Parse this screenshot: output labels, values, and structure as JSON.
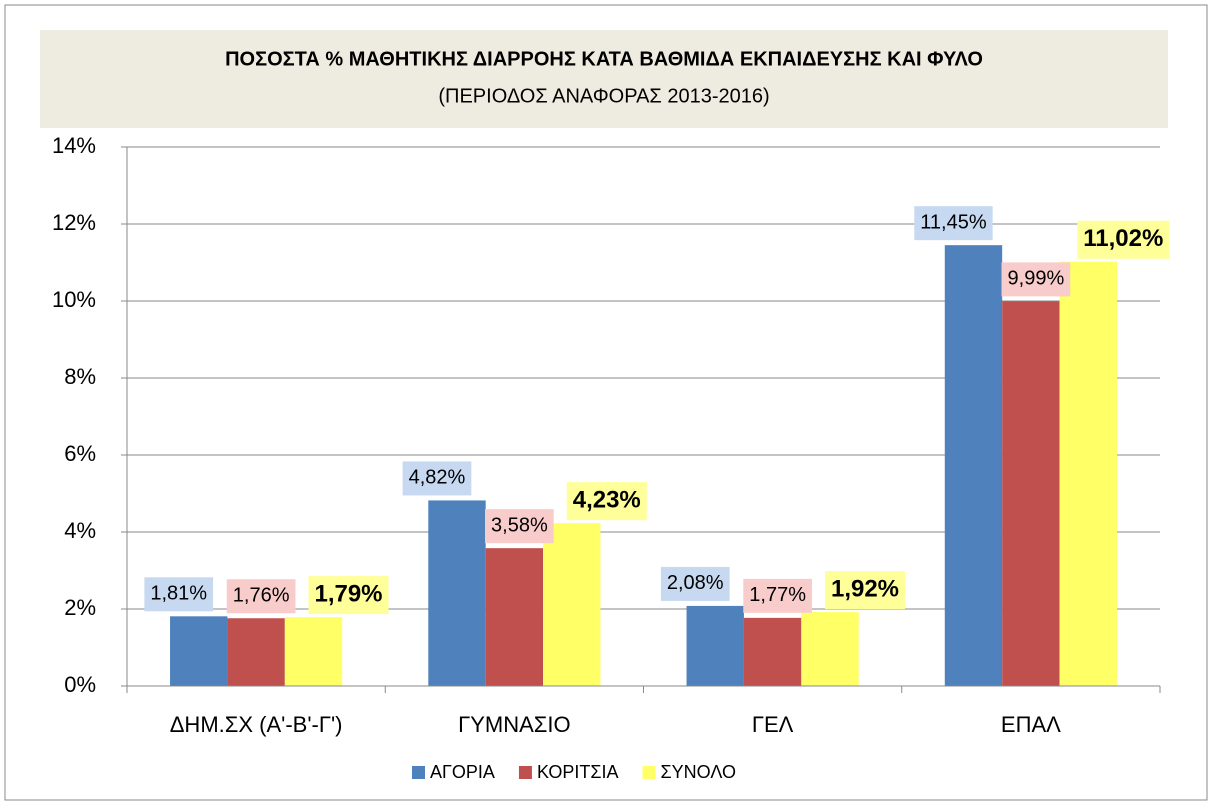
{
  "chart_data": {
    "type": "bar",
    "title": "ΠΟΣΟΣΤΑ % ΜΑΘΗΤΙΚΗΣ  ΔΙΑΡΡΟΗΣ ΚΑΤΑ  ΒΑΘΜΙΔΑ  ΕΚΠΑΙΔΕΥΣΗΣ  ΚΑΙ  ΦΥΛΟ",
    "subtitle": "(ΠΕΡΙΟΔΟΣ ΑΝΑΦΟΡΑΣ 2013-2016)",
    "categories": [
      "ΔΗΜ.ΣΧ (Α'-Β'-Γ')",
      "ΓΥΜΝΑΣΙΟ",
      "ΓΕΛ",
      "ΕΠΑΛ"
    ],
    "series": [
      {
        "name": "ΑΓΟΡΙΑ",
        "color": "#4f81bd",
        "label_background": "#c6d9f1",
        "values": [
          1.81,
          4.82,
          2.08,
          11.45
        ],
        "value_labels": [
          "1,81%",
          "4,82%",
          "2,08%",
          "11,45%"
        ]
      },
      {
        "name": "ΚΟΡΙΤΣΙΑ",
        "color": "#c0504d",
        "label_background": "#f9cccc",
        "values": [
          1.76,
          3.58,
          1.77,
          9.99
        ],
        "value_labels": [
          "1,76%",
          "3,58%",
          "1,77%",
          "9,99%"
        ]
      },
      {
        "name": "ΣΥΝΟΛΟ",
        "color": "#ffff66",
        "label_background": "#ffff99",
        "values": [
          1.79,
          4.23,
          1.92,
          11.02
        ],
        "value_labels": [
          "1,79%",
          "4,23%",
          "1,92%",
          "11,02%"
        ]
      }
    ],
    "ylim": [
      0,
      14
    ],
    "yticks": [
      {
        "value": 0,
        "label": "0%"
      },
      {
        "value": 2,
        "label": "2%"
      },
      {
        "value": 4,
        "label": "4%"
      },
      {
        "value": 6,
        "label": "6%"
      },
      {
        "value": 8,
        "label": "8%"
      },
      {
        "value": 10,
        "label": "10%"
      },
      {
        "value": 12,
        "label": "12%"
      },
      {
        "value": 14,
        "label": "14%"
      }
    ],
    "grid": true,
    "legend": "bottom"
  }
}
